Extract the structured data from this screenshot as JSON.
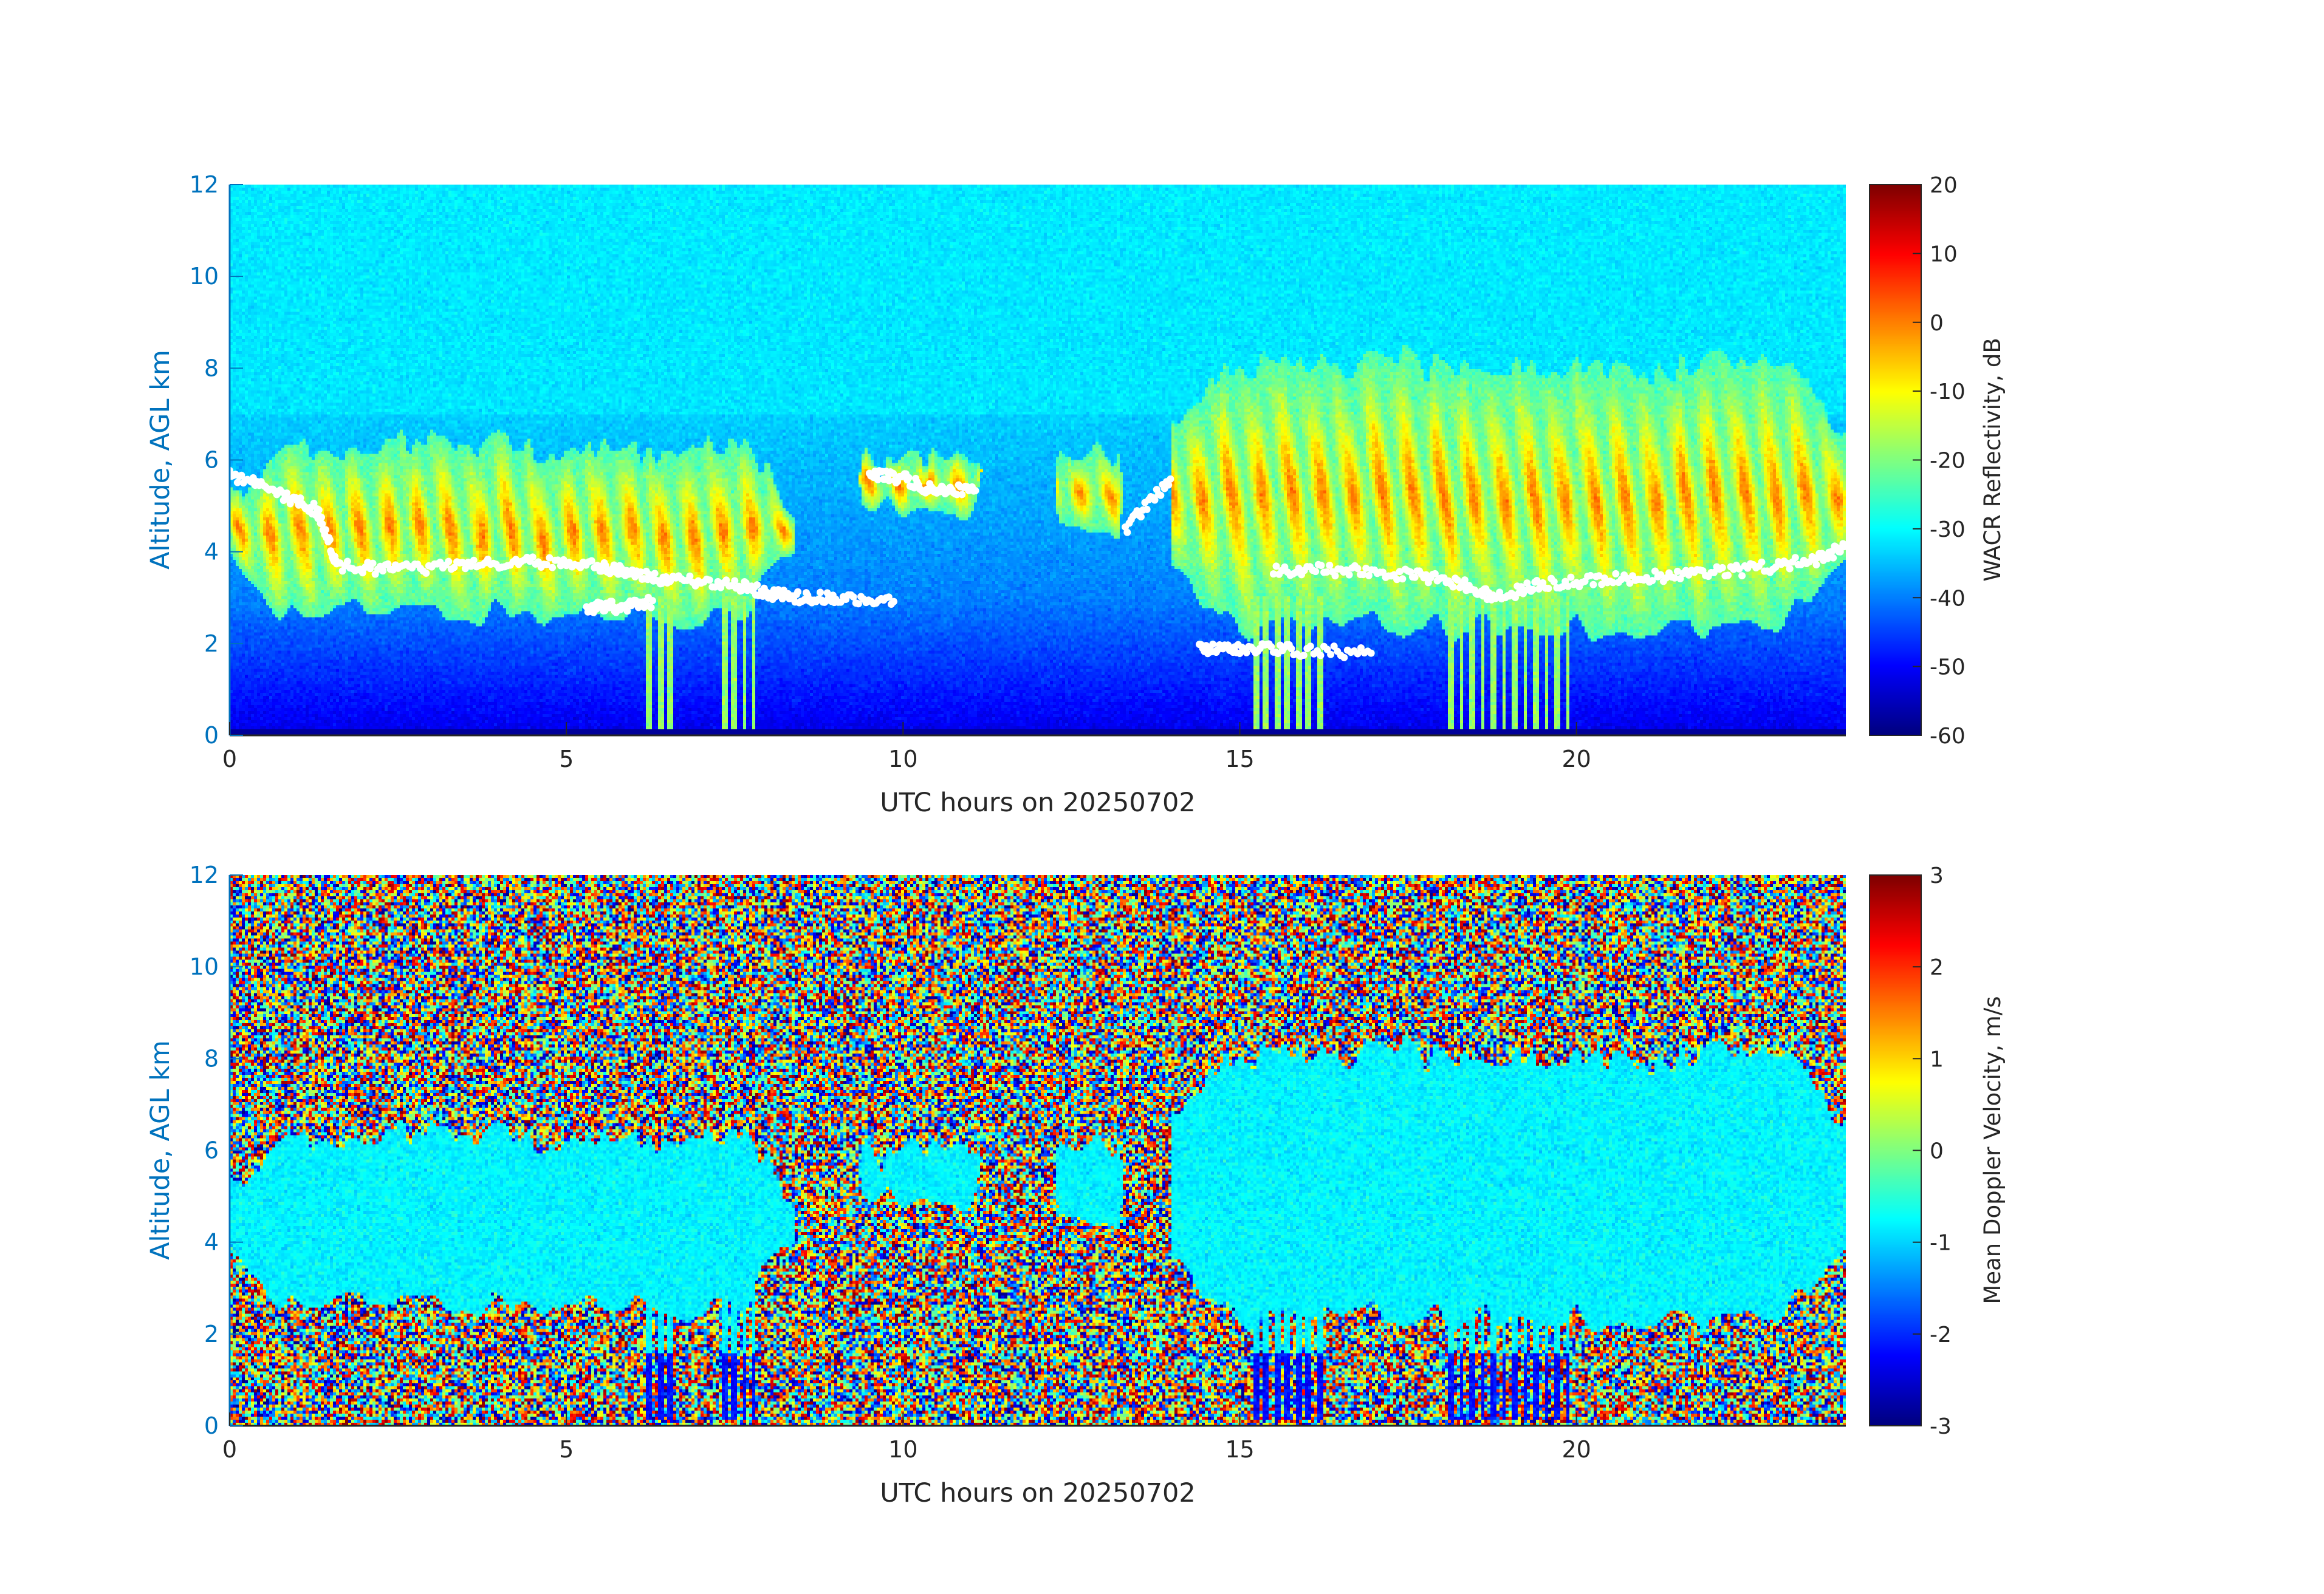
{
  "chart_data": [
    {
      "type": "heatmap",
      "title": "",
      "xlabel": "UTC hours on 20250702",
      "ylabel": "Altitude, AGL km",
      "xlim": [
        0,
        24
      ],
      "ylim": [
        0,
        12
      ],
      "xticks": [
        0,
        5,
        10,
        15,
        20
      ],
      "yticks": [
        0,
        2,
        4,
        6,
        8,
        10,
        12
      ],
      "colorbar": {
        "label": "WACR Reflectivity, dB",
        "range": [
          -60,
          20
        ],
        "ticks": [
          20,
          10,
          0,
          -10,
          -20,
          -30,
          -40,
          -50,
          -60
        ],
        "colormap": "jet"
      },
      "background_level_db": -32,
      "cloud_features": [
        {
          "x_range": [
            0.0,
            8.4
          ],
          "base_km": 2.3,
          "top_km": 6.8,
          "peak_db": 0
        },
        {
          "x_range": [
            9.2,
            11.3
          ],
          "base_km": 4.6,
          "top_km": 6.5,
          "peak_db": -15
        },
        {
          "x_range": [
            12.2,
            13.3
          ],
          "base_km": 4.0,
          "top_km": 6.6,
          "peak_db": -20
        },
        {
          "x_range": [
            14.0,
            24.0
          ],
          "base_km": 2.0,
          "top_km": 8.6,
          "peak_db": -2
        }
      ],
      "precipitation_shafts": [
        {
          "x_range": [
            6.2,
            6.6
          ],
          "base_km": 0.0
        },
        {
          "x_range": [
            7.3,
            7.8
          ],
          "base_km": 0.0
        },
        {
          "x_range": [
            15.2,
            16.3
          ],
          "base_km": 0.0
        },
        {
          "x_range": [
            18.1,
            19.9
          ],
          "base_km": 0.0
        }
      ],
      "overlay_points": {
        "color": "#ffffff",
        "segments": [
          {
            "x": [
              0.0,
              0.7,
              1.3,
              1.6,
              2.5,
              3.5,
              4.5,
              5.5,
              6.0,
              6.5,
              7.5,
              8.0,
              8.5,
              9.0,
              9.9
            ],
            "y": [
              5.7,
              5.3,
              4.9,
              3.7,
              3.6,
              3.7,
              3.8,
              3.7,
              3.5,
              3.4,
              3.3,
              3.1,
              3.0,
              3.0,
              2.9
            ]
          },
          {
            "x": [
              5.3,
              5.8,
              6.3
            ],
            "y": [
              2.8,
              2.8,
              2.9
            ]
          },
          {
            "x": [
              9.5,
              10.0,
              10.5,
              11.1
            ],
            "y": [
              5.7,
              5.6,
              5.3,
              5.4
            ]
          },
          {
            "x": [
              13.3,
              14.0
            ],
            "y": [
              4.5,
              5.6
            ]
          },
          {
            "x": [
              14.4,
              15.0,
              15.8,
              17.0
            ],
            "y": [
              1.9,
              1.9,
              1.85,
              1.8
            ]
          },
          {
            "x": [
              15.5,
              16.5,
              17.5,
              18.3,
              18.8,
              19.5,
              20.5,
              21.5,
              22.5,
              23.5,
              24.0
            ],
            "y": [
              3.6,
              3.6,
              3.5,
              3.3,
              3.0,
              3.3,
              3.4,
              3.5,
              3.6,
              3.8,
              4.1
            ]
          }
        ]
      }
    },
    {
      "type": "heatmap",
      "title": "",
      "xlabel": "UTC hours on 20250702",
      "ylabel": "Altitude, AGL km",
      "xlim": [
        0,
        24
      ],
      "ylim": [
        0,
        12
      ],
      "xticks": [
        0,
        5,
        10,
        15,
        20
      ],
      "yticks": [
        0,
        2,
        4,
        6,
        8,
        10,
        12
      ],
      "colorbar": {
        "label": "Mean Doppler Velocity, m/s",
        "range": [
          -3,
          3
        ],
        "ticks": [
          3,
          2,
          1,
          0,
          -1,
          -2,
          -3
        ],
        "colormap": "jet"
      },
      "cloud_velocity_ms": -0.8,
      "shaft_velocity_ms": -2.2,
      "noise_region": "random values across full range outside cloud"
    }
  ]
}
